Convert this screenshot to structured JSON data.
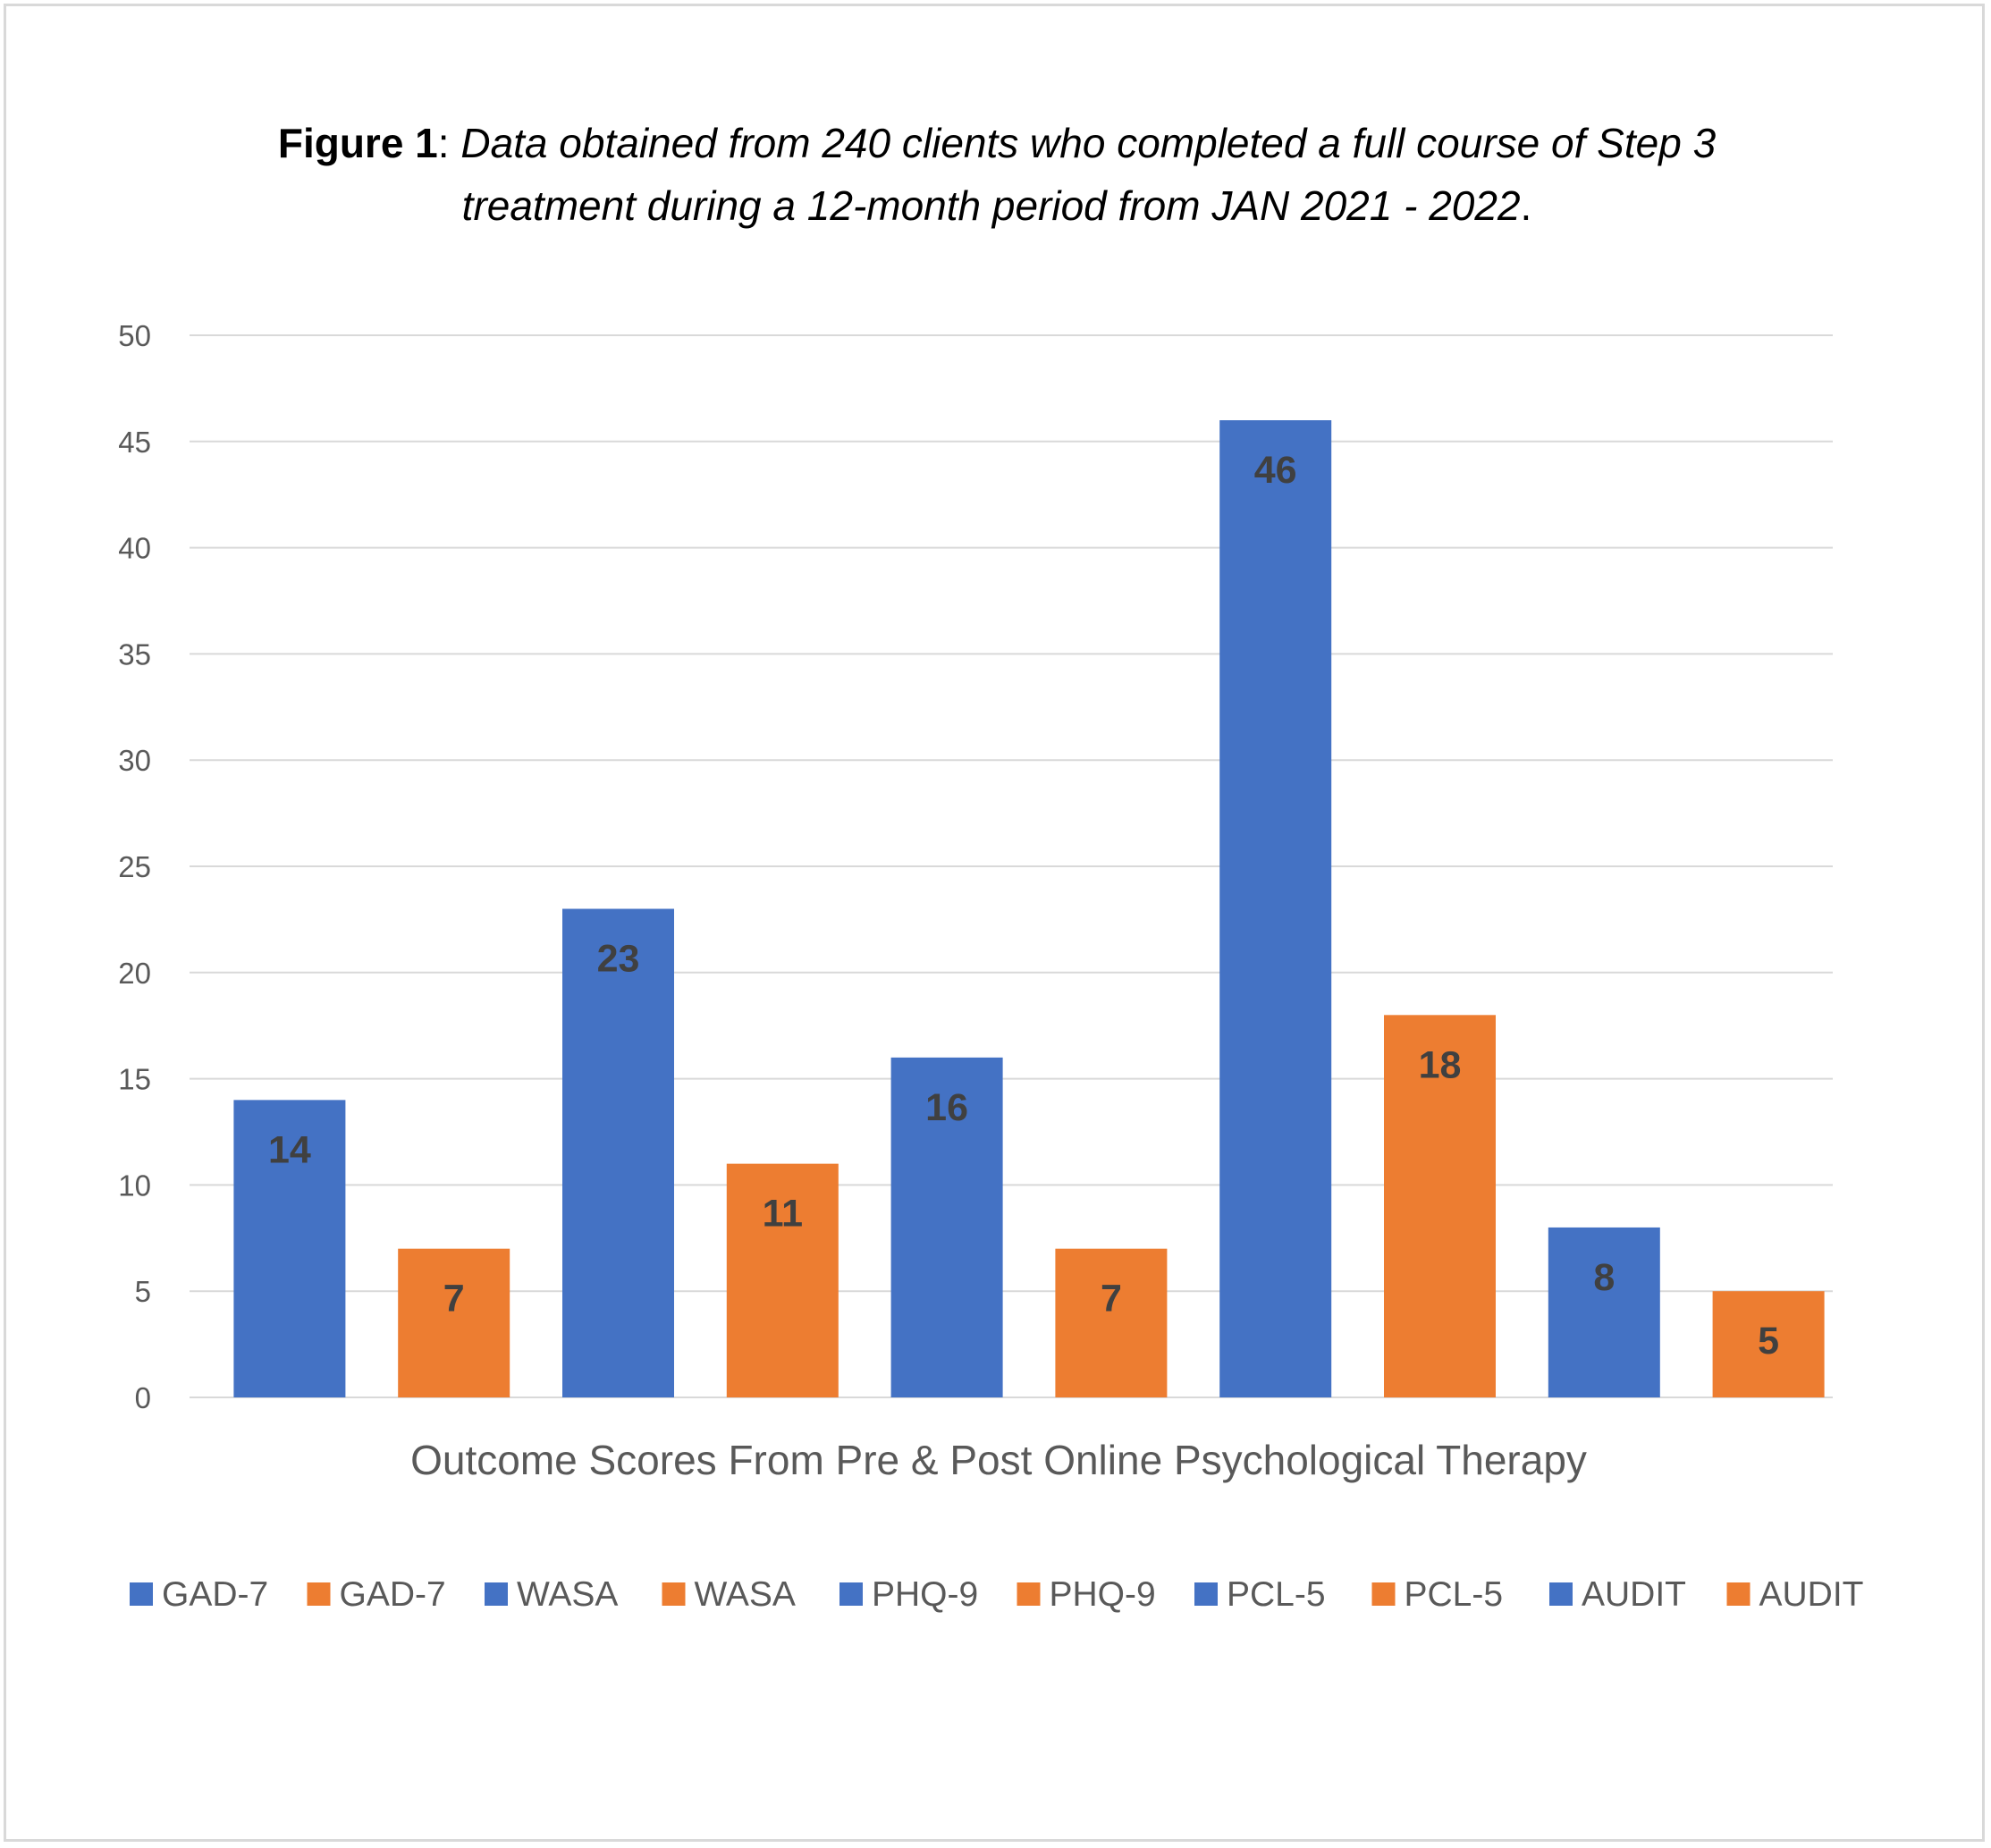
{
  "chart_data": {
    "type": "bar",
    "title": {
      "label": "Figure 1",
      "separator": ": ",
      "line1": "Data obtained from 240 clients who completed a full course of Step 3",
      "line2": "treatment during a 12-month period from JAN 2021 - 2022",
      "end": "."
    },
    "xlabel": "Outcome Scores From Pre & Post Online Psychological Therapy",
    "ylabel": "",
    "ylim": [
      0,
      50
    ],
    "yticks": [
      "0",
      "5",
      "10",
      "15",
      "20",
      "25",
      "30",
      "35",
      "40",
      "45",
      "50"
    ],
    "grid": true,
    "legend_position": "bottom",
    "colors": {
      "blue": "#4472c4",
      "orange": "#ed7d31",
      "grid": "#d9d9d9",
      "text": "#595959",
      "label": "#404040"
    },
    "series": [
      {
        "name": "GAD-7",
        "value": 14,
        "color": "#4472c4"
      },
      {
        "name": "GAD-7",
        "value": 7,
        "color": "#ed7d31"
      },
      {
        "name": "WASA",
        "value": 23,
        "color": "#4472c4"
      },
      {
        "name": "WASA",
        "value": 11,
        "color": "#ed7d31"
      },
      {
        "name": "PHQ-9",
        "value": 16,
        "color": "#4472c4"
      },
      {
        "name": "PHQ-9",
        "value": 7,
        "color": "#ed7d31"
      },
      {
        "name": "PCL-5",
        "value": 46,
        "color": "#4472c4"
      },
      {
        "name": "PCL-5",
        "value": 18,
        "color": "#ed7d31"
      },
      {
        "name": "AUDIT",
        "value": 8,
        "color": "#4472c4"
      },
      {
        "name": "AUDIT",
        "value": 5,
        "color": "#ed7d31"
      }
    ]
  }
}
